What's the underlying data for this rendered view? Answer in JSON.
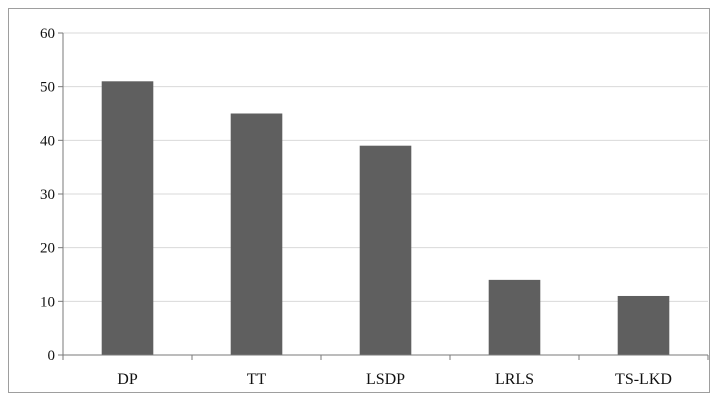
{
  "chart_data": {
    "type": "bar",
    "categories": [
      "DP",
      "TT",
      "LSDP",
      "LRLS",
      "TS-LKD"
    ],
    "values": [
      51,
      45,
      39,
      14,
      11
    ],
    "title": "",
    "xlabel": "",
    "ylabel": "",
    "ylim": [
      0,
      60
    ],
    "yticks": [
      0,
      10,
      20,
      30,
      40,
      50,
      60
    ],
    "grid": true,
    "legend": "none",
    "colors": {
      "bar": "#5f5f5f",
      "grid": "#d9d9d9",
      "axis": "#7a7a7a",
      "frame": "#9e9e9e"
    }
  }
}
